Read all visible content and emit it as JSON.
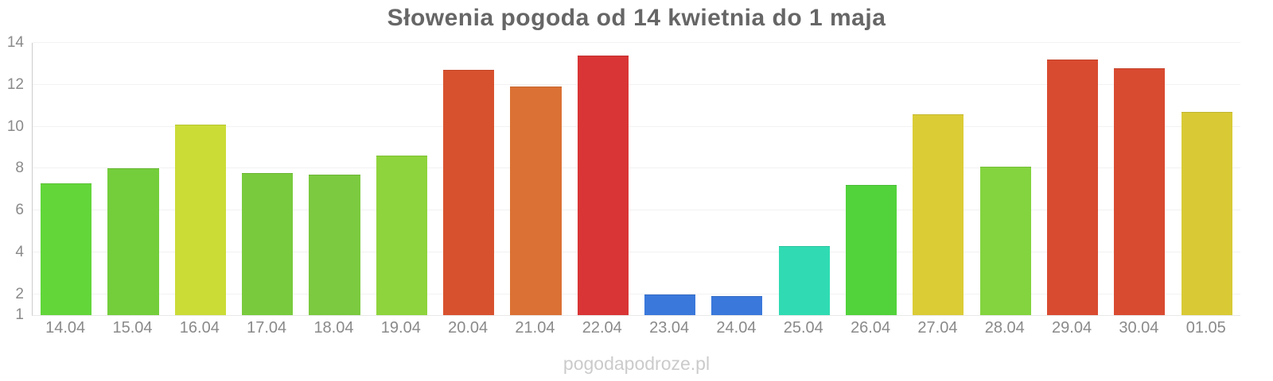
{
  "title": "Słowenia pogoda od 14 kwietnia do 1 maja",
  "watermark": "pogodapodroze.pl",
  "colors": {
    "background": "#ffffff",
    "title_text": "#666666",
    "axis_label_text": "#8a8a8a",
    "gridline": "#f2f2f2",
    "y_axis_line": "#cccccc",
    "x_axis_line": "#e8e8e8",
    "watermark_text": "#cbcbcb"
  },
  "chart_data": {
    "type": "bar",
    "title": "Słowenia pogoda od 14 kwietnia do 1 maja",
    "xlabel": "",
    "ylabel": "",
    "ylim": [
      1,
      14
    ],
    "yticks": [
      1,
      2,
      4,
      6,
      8,
      10,
      12,
      14
    ],
    "grid": "horizontal",
    "legend": "none",
    "categories": [
      "14.04",
      "15.04",
      "16.04",
      "17.04",
      "18.04",
      "19.04",
      "20.04",
      "21.04",
      "22.04",
      "23.04",
      "24.04",
      "25.04",
      "26.04",
      "27.04",
      "28.04",
      "29.04",
      "30.04",
      "01.05"
    ],
    "values": [
      7.3,
      8.0,
      10.1,
      7.8,
      7.7,
      8.6,
      12.7,
      11.9,
      13.4,
      2.0,
      1.9,
      4.3,
      7.2,
      10.6,
      8.1,
      13.2,
      12.8,
      10.7
    ],
    "bar_colors": [
      "#63d63a",
      "#74ce3b",
      "#cbdc37",
      "#79cb3d",
      "#7bca3f",
      "#8ed43c",
      "#d8512f",
      "#db7134",
      "#d93536",
      "#3a78db",
      "#3a78db",
      "#30dbb3",
      "#52d23b",
      "#dbcc36",
      "#83d43e",
      "#d94b31",
      "#d94b31",
      "#d9ca35"
    ]
  }
}
